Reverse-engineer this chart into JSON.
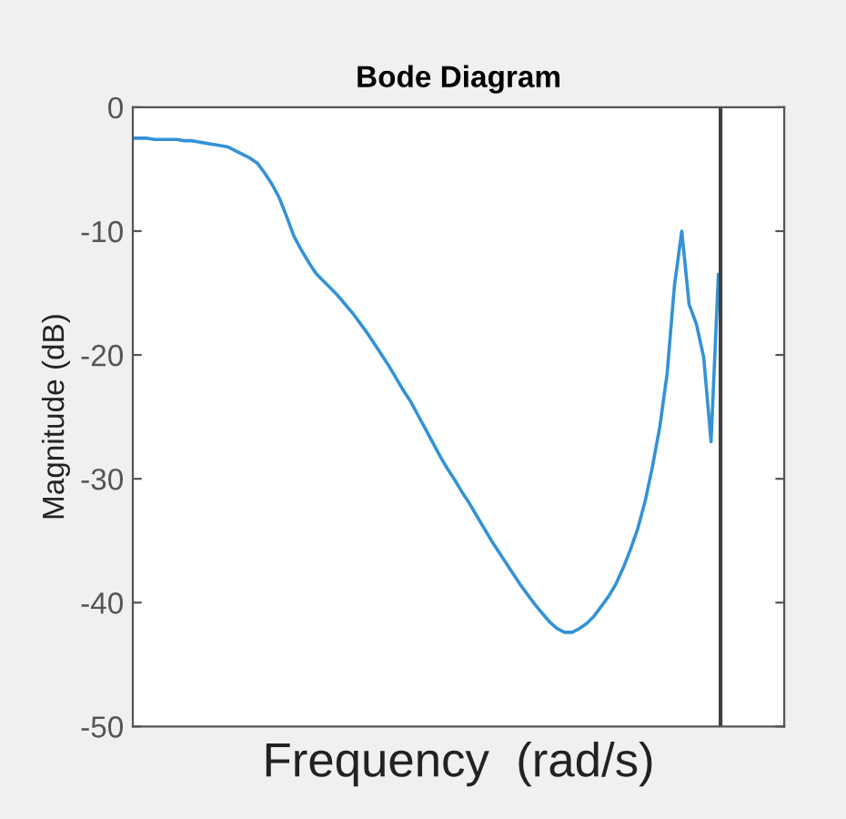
{
  "chart_data": {
    "type": "line",
    "title": "Bode Diagram",
    "xlabel": "Frequency  (rad/s)",
    "ylabel": "Magnitude (dB)",
    "categories": [
      null,
      null,
      null,
      null,
      null,
      null,
      null,
      null,
      null,
      null,
      null,
      null,
      null,
      null,
      null,
      null,
      null,
      null,
      null,
      null,
      null,
      null,
      null,
      null,
      null,
      null,
      null,
      null,
      null,
      null,
      null,
      null,
      null,
      null,
      null,
      null,
      null,
      null,
      null,
      null,
      null,
      null,
      null,
      null,
      null,
      null,
      null,
      null,
      null,
      null,
      null,
      null,
      null,
      null,
      null,
      null,
      null,
      null,
      null,
      null,
      null,
      null,
      null,
      null,
      null,
      null,
      null,
      null,
      null,
      null,
      null,
      null,
      null,
      null,
      null,
      null,
      null,
      null,
      null,
      null,
      null,
      null,
      null,
      null,
      null,
      null,
      null,
      null,
      null,
      null
    ],
    "series": [
      {
        "color": "#3492d6",
        "values": [
          -2.5,
          -2.5,
          -2.5,
          -2.6,
          -2.6,
          -2.6,
          -2.6,
          -2.7,
          -2.7,
          -2.8,
          -2.9,
          -3.0,
          -3.1,
          -3.2,
          -3.5,
          -3.8,
          -4.1,
          -4.5,
          -5.3,
          -6.2,
          -7.3,
          -8.8,
          -10.4,
          -11.5,
          -12.5,
          -13.4,
          -14.0,
          -14.6,
          -15.2,
          -15.9,
          -16.6,
          -17.4,
          -18.2,
          -19.1,
          -20.0,
          -20.9,
          -21.9,
          -22.9,
          -23.8,
          -24.9,
          -26.0,
          -27.1,
          -28.2,
          -29.2,
          -30.1,
          -31.1,
          -32.0,
          -33.0,
          -34.0,
          -35.0,
          -35.9,
          -36.8,
          -37.7,
          -38.6,
          -39.4,
          -40.2,
          -40.9,
          -41.6,
          -42.1,
          -42.4,
          -42.4,
          -42.1,
          -41.7,
          -41.1,
          -40.3,
          -39.5,
          -38.5,
          -37.2,
          -35.7,
          -34.0,
          -31.8,
          -29.0,
          -25.8,
          -21.5,
          -14.4,
          -10.0,
          -15.9,
          -17.5,
          -20.2,
          -27.0,
          -13.5,
          null,
          null,
          null,
          null,
          null,
          null,
          null,
          null,
          null
        ]
      }
    ],
    "ylim": [
      -50,
      0
    ],
    "yticks": [
      -50,
      -40,
      -30,
      -20,
      -10,
      0
    ],
    "grid": false,
    "legend": false,
    "tick_labels": "y"
  }
}
